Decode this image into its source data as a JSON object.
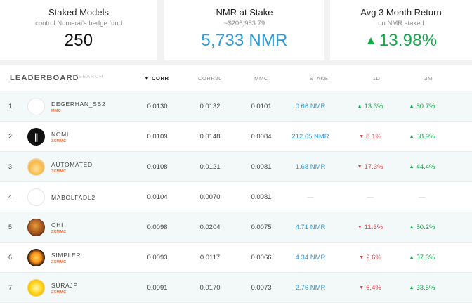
{
  "cards": [
    {
      "title": "Staked Models",
      "subtitle": "control Numerai's hedge fund",
      "value": "250",
      "style": "plain",
      "arrow": ""
    },
    {
      "title": "NMR at Stake",
      "subtitle": "~$206,953.79",
      "value": "5,733 NMR",
      "style": "blue",
      "arrow": ""
    },
    {
      "title": "Avg 3 Month Return",
      "subtitle": "on NMR staked",
      "value": "13.98%",
      "style": "green",
      "arrow": "▲"
    }
  ],
  "leaderboard": {
    "title": "LEADERBOARD",
    "search_placeholder": "SEARCH",
    "sort_indicator": "▼",
    "columns": {
      "corr": "CORR",
      "corr20": "CORR20",
      "mmc": "MMC",
      "stake": "STAKE",
      "d1": "1D",
      "m3": "3M"
    },
    "rows": [
      {
        "rank": "1",
        "name": "DEGERHAN_SB2",
        "badge": "MMC",
        "avatar": "blank",
        "corr": "0.0130",
        "corr20": "0.0132",
        "mmc": "0.0101",
        "stake": "0.66 NMR",
        "d1": "13.3%",
        "d1_dir": "up",
        "m3": "50.7%",
        "m3_dir": "up"
      },
      {
        "rank": "2",
        "name": "NOMI",
        "badge": "3XMMC",
        "avatar": "nomi",
        "corr": "0.0109",
        "corr20": "0.0148",
        "mmc": "0.0084",
        "stake": "212.65 NMR",
        "d1": "8.1%",
        "d1_dir": "down",
        "m3": "58.9%",
        "m3_dir": "up"
      },
      {
        "rank": "3",
        "name": "AUTOMATED",
        "badge": "3XMMC",
        "avatar": "automated",
        "corr": "0.0108",
        "corr20": "0.0121",
        "mmc": "0.0081",
        "stake": "1.68 NMR",
        "d1": "17.3%",
        "d1_dir": "down",
        "m3": "44.4%",
        "m3_dir": "up"
      },
      {
        "rank": "4",
        "name": "MABOLFADL2",
        "badge": "",
        "avatar": "blank",
        "corr": "0.0104",
        "corr20": "0.0070",
        "mmc": "0.0081",
        "stake": "—",
        "d1": "—",
        "d1_dir": "none",
        "m3": "—",
        "m3_dir": "none"
      },
      {
        "rank": "5",
        "name": "OHI",
        "badge": "3XMMC",
        "avatar": "ohi",
        "corr": "0.0098",
        "corr20": "0.0204",
        "mmc": "0.0075",
        "stake": "4.71 NMR",
        "d1": "11.3%",
        "d1_dir": "down",
        "m3": "50.2%",
        "m3_dir": "up"
      },
      {
        "rank": "6",
        "name": "SIMPLER",
        "badge": "2XMMC",
        "avatar": "simpler",
        "corr": "0.0093",
        "corr20": "0.0117",
        "mmc": "0.0066",
        "stake": "4.34 NMR",
        "d1": "2.6%",
        "d1_dir": "down",
        "m3": "37.3%",
        "m3_dir": "up"
      },
      {
        "rank": "7",
        "name": "SURAJP",
        "badge": "2XMMC",
        "avatar": "surajp",
        "corr": "0.0091",
        "corr20": "0.0170",
        "mmc": "0.0073",
        "stake": "2.76 NMR",
        "d1": "6.4%",
        "d1_dir": "down",
        "m3": "33.5%",
        "m3_dir": "up"
      }
    ]
  },
  "colors": {
    "accent_blue": "#2d9cdb",
    "up_green": "#15a84a",
    "down_red": "#e0424a",
    "badge_orange": "#ff6a2c"
  }
}
